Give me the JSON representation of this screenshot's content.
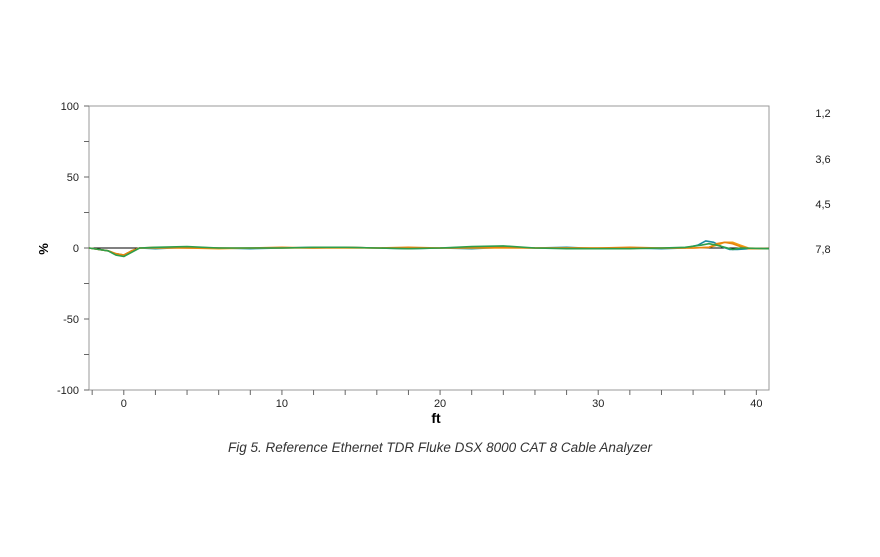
{
  "caption": "Fig 5. Reference Ethernet TDR Fluke DSX 8000 CAT 8 Cable Analyzer",
  "chart_data": {
    "type": "line",
    "title": "",
    "xlabel": "ft",
    "ylabel": "%",
    "xlim": [
      -2.2,
      40.8
    ],
    "ylim": [
      -100,
      100
    ],
    "x_ticks": [
      0,
      10,
      20,
      30,
      40
    ],
    "y_ticks": [
      100,
      50,
      0,
      -50,
      -100
    ],
    "y_tick_labels": [
      "100",
      "50",
      "0",
      "-50",
      "-100"
    ],
    "grid": false,
    "legend_position": "right",
    "legend": [
      "1,2",
      "3,6",
      "4,5",
      "7,8"
    ],
    "series": [
      {
        "name": "1,2",
        "color": "#1b8ba0",
        "x": [
          -2.2,
          -1,
          -0.5,
          0,
          0.5,
          1,
          2,
          4,
          6,
          8,
          10,
          12,
          14,
          16,
          18,
          20,
          22,
          24,
          26,
          28,
          30,
          32,
          34,
          35.5,
          36.3,
          36.8,
          37.3,
          37.8,
          38.3,
          38.8,
          39.5,
          40.8
        ],
        "y": [
          0,
          -2,
          -4,
          -5,
          -2,
          0,
          -0.5,
          0.5,
          0,
          -0.5,
          0,
          0.5,
          0.5,
          0,
          -0.5,
          0,
          -0.5,
          0.5,
          0,
          0.5,
          -0.5,
          0,
          -0.5,
          0,
          2,
          5,
          4,
          1,
          -1,
          -1,
          -0.5,
          -0.5
        ]
      },
      {
        "name": "3,6",
        "color": "#f39c12",
        "x": [
          -2.2,
          -1,
          -0.5,
          0,
          0.5,
          1,
          2,
          4,
          6,
          8,
          10,
          12,
          14,
          16,
          18,
          20,
          22,
          24,
          26,
          28,
          30,
          32,
          34,
          36,
          37,
          37.5,
          38,
          38.5,
          39,
          39.5,
          40.8
        ],
        "y": [
          0,
          -2,
          -4,
          -5,
          -2,
          0,
          0,
          0,
          -0.5,
          0,
          0,
          0,
          0,
          0,
          0,
          0,
          0,
          0,
          0,
          0,
          0,
          0,
          0,
          0,
          0.5,
          2,
          4,
          4,
          2,
          0,
          -0.5
        ]
      },
      {
        "name": "4,5",
        "color": "#e8830e",
        "x": [
          -2.2,
          -1,
          -0.5,
          0,
          0.5,
          1,
          2,
          4,
          6,
          8,
          10,
          12,
          14,
          16,
          18,
          20,
          22,
          24,
          26,
          28,
          30,
          32,
          34,
          36,
          37,
          37.5,
          38,
          38.5,
          39,
          39.5,
          40.8
        ],
        "y": [
          0,
          -2,
          -4,
          -5,
          -2,
          0,
          0.5,
          0,
          0,
          0,
          0.5,
          0,
          0.5,
          0,
          0.5,
          0,
          0.5,
          0.5,
          0,
          0,
          0,
          0.5,
          0,
          0,
          0.5,
          3,
          4,
          3,
          1,
          -0.5,
          -0.5
        ]
      },
      {
        "name": "7,8",
        "color": "#2e9e4a",
        "x": [
          -2.2,
          -1,
          -0.5,
          0,
          0.5,
          1,
          2,
          4,
          6,
          8,
          10,
          12,
          14,
          16,
          18,
          20,
          22,
          24,
          26,
          28,
          30,
          32,
          34,
          35.5,
          36.5,
          37,
          37.5,
          38,
          38.5,
          39,
          40.8
        ],
        "y": [
          0,
          -2,
          -5,
          -6,
          -3,
          0,
          0.5,
          1,
          0,
          0,
          0,
          0.5,
          0.5,
          0,
          -0.5,
          0,
          1,
          1.5,
          0,
          -0.5,
          -0.5,
          -0.5,
          0,
          0.5,
          2,
          3,
          2,
          0.5,
          -1,
          0,
          -0.5
        ]
      }
    ]
  }
}
